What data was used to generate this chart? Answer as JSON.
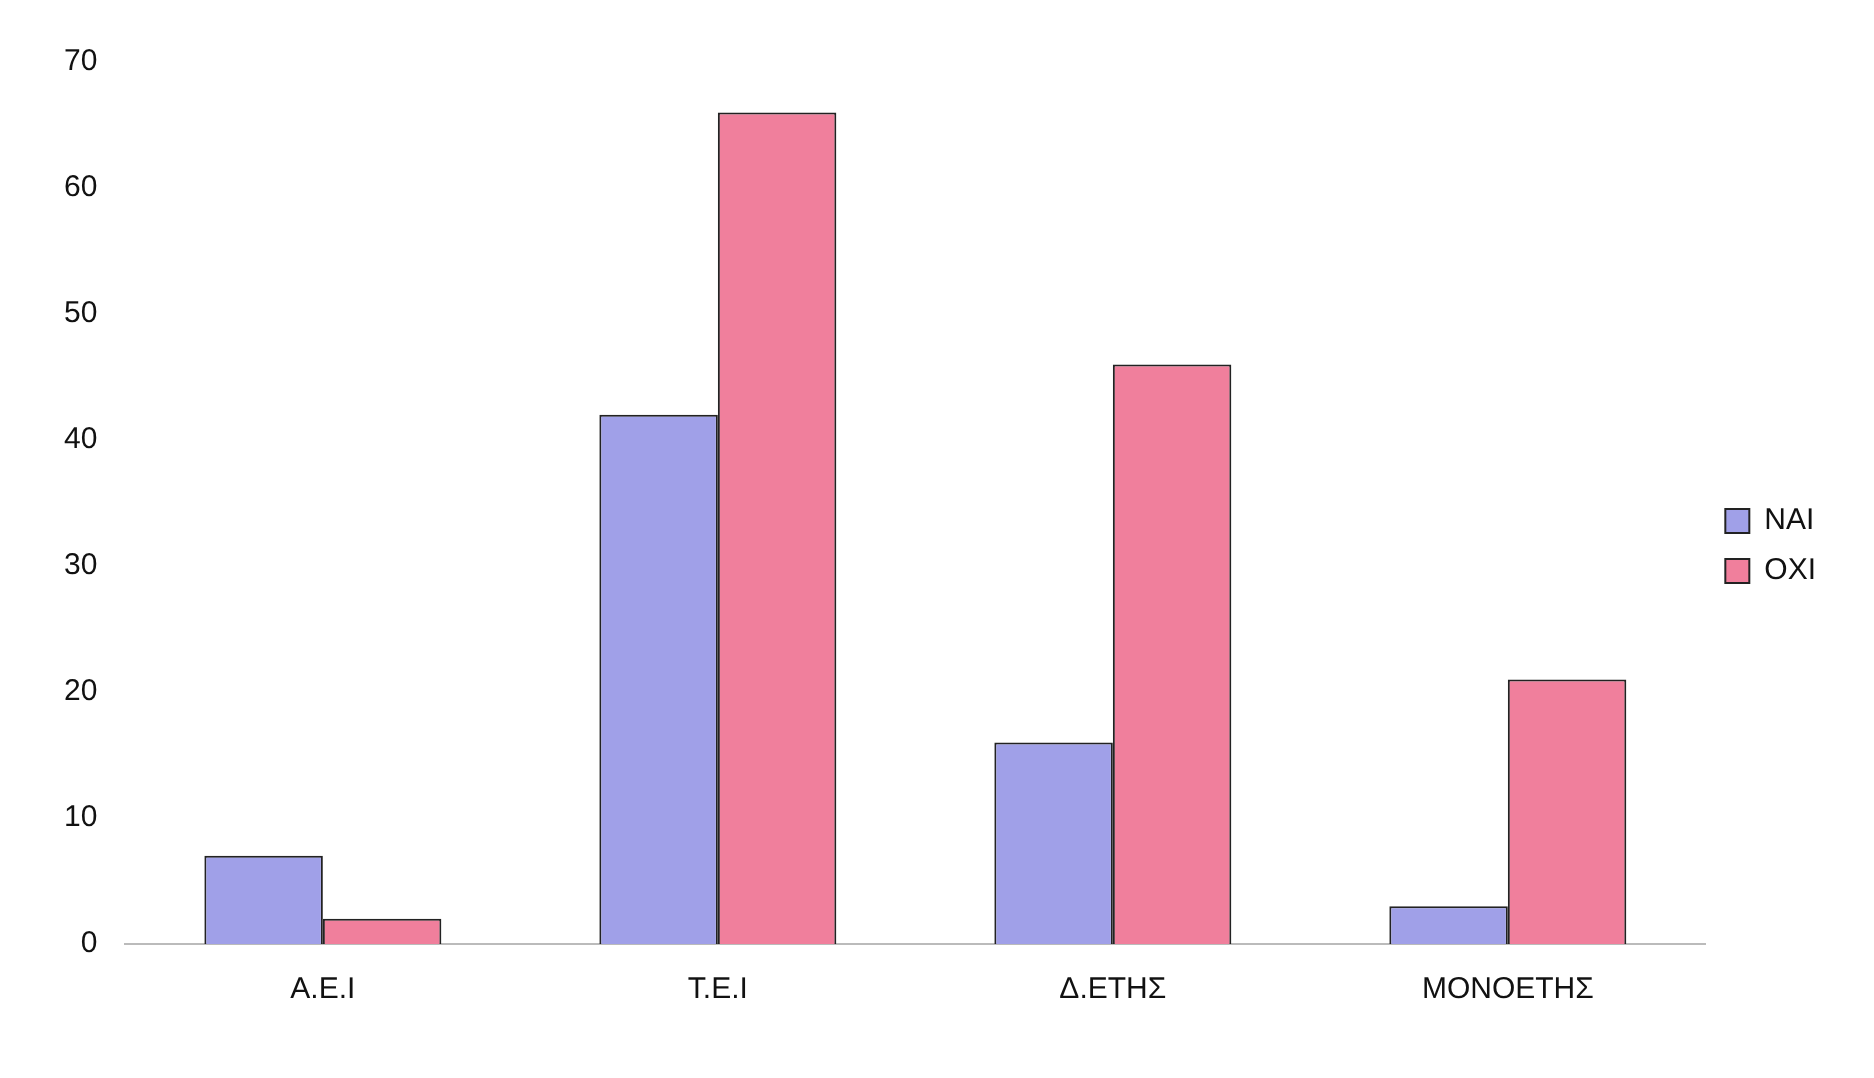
{
  "chart_data": {
    "type": "bar",
    "categories": [
      "Α.Ε.Ι",
      "Τ.Ε.Ι",
      "Δ.ΕΤΗΣ",
      "ΜΟΝΟΕΤΗΣ"
    ],
    "series": [
      {
        "name": "ΝΑΙ",
        "color": "#a0a0e8",
        "values": [
          7,
          42,
          16,
          3
        ]
      },
      {
        "name": "ΟΧΙ",
        "color": "#f07f9c",
        "values": [
          2,
          66,
          46,
          21
        ]
      }
    ],
    "ylim": [
      0,
      70
    ],
    "yticks": [
      0,
      10,
      20,
      30,
      40,
      50,
      60,
      70
    ],
    "grid": false,
    "legend": "right"
  }
}
